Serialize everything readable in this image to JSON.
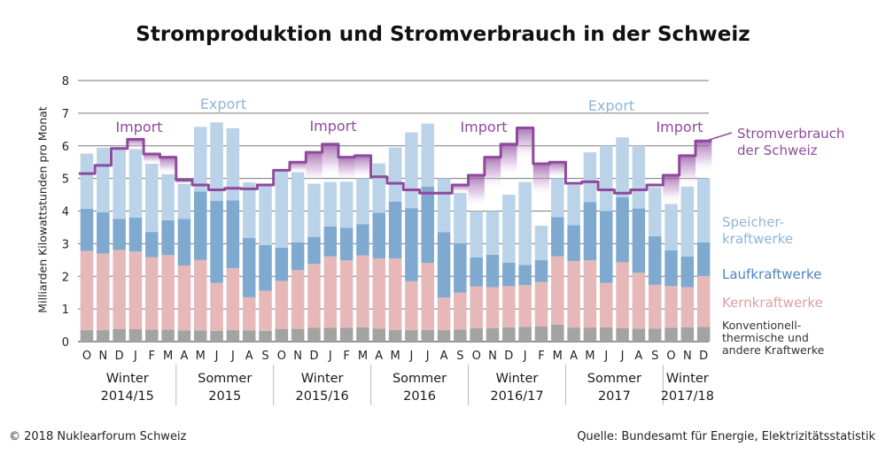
{
  "title": "Stromproduktion und Stromverbrauch in der Schweiz",
  "footer": {
    "left": "© 2018 Nuklearforum Schweiz",
    "right": "Quelle: Bundesamt für Energie, Elektrizitätsstatistik"
  },
  "annotations": {
    "export": "Export",
    "import": "Import"
  },
  "legend": {
    "consumption_line1": "Stromverbrauch",
    "consumption_line2": "der Schweiz",
    "storage_line1": "Speicher-",
    "storage_line2": "kraftwerke",
    "runofriver": "Laufkraftwerke",
    "nuclear": "Kernkraftwerke",
    "conventional_line1": "Konventionell-",
    "conventional_line2": "thermische und",
    "conventional_line3": "andere Kraftwerke"
  },
  "colors": {
    "conventional": "#a3a3a3",
    "nuclear": "#e6b8b8",
    "runofriver": "#7fa9cf",
    "storage": "#bad3e8",
    "consumption": "#8e4a9c",
    "import_fill": "#8e4a9c"
  },
  "chart_data": {
    "type": "bar",
    "stacked": true,
    "ylabel": "Milliarden Kilowattstunden pro Monat",
    "ylim": [
      0,
      8
    ],
    "yticks": [
      0,
      1,
      2,
      3,
      4,
      5,
      6,
      7,
      8
    ],
    "grid": true,
    "categories": [
      "O",
      "N",
      "D",
      "J",
      "F",
      "M",
      "A",
      "M",
      "J",
      "J",
      "A",
      "S",
      "O",
      "N",
      "D",
      "J",
      "F",
      "M",
      "A",
      "M",
      "J",
      "J",
      "A",
      "S",
      "O",
      "N",
      "D",
      "J",
      "F",
      "M",
      "A",
      "M",
      "J",
      "J",
      "A",
      "S",
      "O",
      "N",
      "D"
    ],
    "periods": [
      {
        "line1": "Winter",
        "line2": "2014/15",
        "months": 6
      },
      {
        "line1": "Sommer",
        "line2": "2015",
        "months": 6
      },
      {
        "line1": "Winter",
        "line2": "2015/16",
        "months": 6
      },
      {
        "line1": "Sommer",
        "line2": "2016",
        "months": 6
      },
      {
        "line1": "Winter",
        "line2": "2016/17",
        "months": 6
      },
      {
        "line1": "Sommer",
        "line2": "2017",
        "months": 6
      },
      {
        "line1": "Winter",
        "line2": "2017/18",
        "months": 3
      }
    ],
    "series": [
      {
        "name": "Konventionell-thermische und andere Kraftwerke",
        "values": [
          0.35,
          0.35,
          0.38,
          0.38,
          0.37,
          0.37,
          0.34,
          0.34,
          0.33,
          0.35,
          0.34,
          0.33,
          0.39,
          0.39,
          0.42,
          0.42,
          0.42,
          0.44,
          0.4,
          0.36,
          0.35,
          0.36,
          0.35,
          0.37,
          0.41,
          0.41,
          0.44,
          0.45,
          0.46,
          0.52,
          0.43,
          0.43,
          0.44,
          0.41,
          0.4,
          0.4,
          0.42,
          0.44,
          0.45
        ]
      },
      {
        "name": "Kernkraftwerke",
        "values": [
          2.43,
          2.35,
          2.43,
          2.38,
          2.22,
          2.28,
          1.99,
          2.16,
          1.47,
          1.9,
          1.02,
          1.23,
          1.47,
          1.8,
          1.96,
          2.19,
          2.07,
          2.2,
          2.15,
          2.19,
          1.5,
          2.05,
          1.0,
          1.13,
          1.28,
          1.26,
          1.26,
          1.28,
          1.37,
          2.09,
          2.04,
          2.06,
          1.36,
          2.02,
          1.71,
          1.34,
          1.28,
          1.23,
          1.56
        ]
      },
      {
        "name": "Laufkraftwerke",
        "values": [
          1.29,
          1.26,
          0.95,
          1.04,
          0.77,
          1.07,
          1.43,
          2.1,
          2.51,
          2.08,
          1.82,
          1.4,
          1.02,
          0.85,
          0.83,
          0.92,
          1.0,
          0.96,
          1.4,
          1.74,
          2.24,
          2.34,
          2.0,
          1.51,
          0.89,
          0.99,
          0.72,
          0.62,
          0.67,
          1.2,
          1.1,
          1.79,
          2.2,
          1.99,
          1.97,
          1.49,
          1.1,
          0.94,
          1.03
        ]
      },
      {
        "name": "Speicherkraftwerke",
        "values": [
          1.69,
          1.98,
          2.14,
          2.1,
          2.09,
          1.41,
          1.07,
          1.98,
          2.41,
          2.21,
          1.7,
          1.84,
          2.35,
          2.15,
          1.63,
          1.36,
          1.41,
          1.4,
          1.51,
          1.66,
          2.32,
          1.93,
          1.65,
          1.55,
          1.42,
          1.34,
          2.08,
          2.54,
          1.05,
          1.19,
          1.23,
          1.52,
          2.0,
          1.84,
          1.92,
          1.5,
          1.42,
          2.14,
          1.96
        ]
      },
      {
        "name": "Stromverbrauch der Schweiz",
        "type": "line",
        "values": [
          5.15,
          5.4,
          5.92,
          6.2,
          5.75,
          5.65,
          4.95,
          4.8,
          4.65,
          4.7,
          4.68,
          4.8,
          5.25,
          5.5,
          5.8,
          6.05,
          5.65,
          5.7,
          5.05,
          4.85,
          4.65,
          4.55,
          4.55,
          4.8,
          5.1,
          5.65,
          6.05,
          6.55,
          5.45,
          5.5,
          4.85,
          4.9,
          4.65,
          4.55,
          4.65,
          4.8,
          5.1,
          5.7,
          6.15
        ]
      }
    ]
  }
}
